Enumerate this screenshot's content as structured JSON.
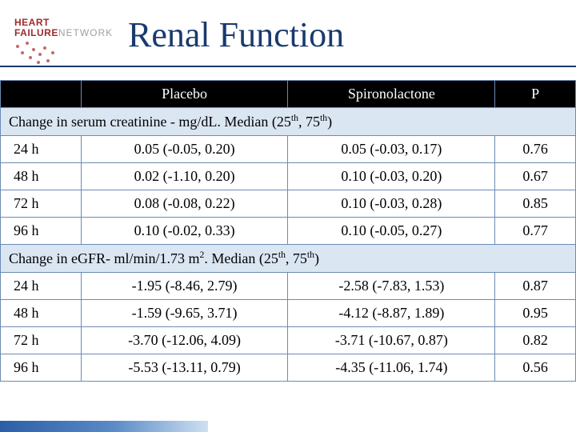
{
  "logo": {
    "line1": "HEART",
    "line2a": "FAILURE",
    "line2b": "NETWORK"
  },
  "title": "Renal Function",
  "table": {
    "headers": {
      "blank": "",
      "placebo": "Placebo",
      "spiro": "Spironolactone",
      "p": "P"
    },
    "section1": "Change in serum creatinine - mg/dL. Median (25",
    "section1_sup": "th",
    "section1_mid": ", 75",
    "section1_sup2": "th",
    "section1_end": ")",
    "section2": "Change in eGFR- ml/min/1.73 m",
    "section2_sup0": "2",
    "section2_mid0": ". Median (25",
    "section2_sup": "th",
    "section2_mid": ", 75",
    "section2_sup2": "th",
    "section2_end": ")",
    "rows1": [
      {
        "t": "24 h",
        "placebo": "0.05 (-0.05, 0.20)",
        "spiro": "0.05 (-0.03, 0.17)",
        "p": "0.76"
      },
      {
        "t": "48 h",
        "placebo": "0.02 (-1.10, 0.20)",
        "spiro": "0.10 (-0.03, 0.20)",
        "p": "0.67"
      },
      {
        "t": "72 h",
        "placebo": "0.08 (-0.08, 0.22)",
        "spiro": "0.10 (-0.03, 0.28)",
        "p": "0.85"
      },
      {
        "t": "96 h",
        "placebo": "0.10 (-0.02, 0.33)",
        "spiro": "0.10 (-0.05, 0.27)",
        "p": "0.77"
      }
    ],
    "rows2": [
      {
        "t": "24 h",
        "placebo": "-1.95 (-8.46, 2.79)",
        "spiro": "-2.58 (-7.83, 1.53)",
        "p": "0.87"
      },
      {
        "t": "48 h",
        "placebo": "-1.59 (-9.65, 3.71)",
        "spiro": "-4.12 (-8.87, 1.89)",
        "p": "0.95"
      },
      {
        "t": "72 h",
        "placebo": "-3.70 (-12.06, 4.09)",
        "spiro": "-3.71 (-10.67, 0.87)",
        "p": "0.82"
      },
      {
        "t": "96 h",
        "placebo": "-5.53 (-13.11, 0.79)",
        "spiro": "-4.35 (-11.06, 1.74)",
        "p": "0.56"
      }
    ]
  },
  "colors": {
    "title": "#1a3a6e",
    "section_bg": "#dbe6f3",
    "header_bg": "#000000",
    "border": "#6b8bb5",
    "logo_red": "#9e2a2a"
  }
}
